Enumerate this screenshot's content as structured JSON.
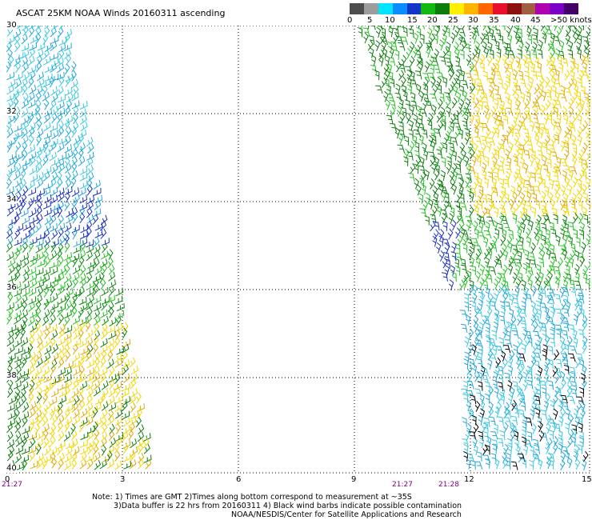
{
  "title": "ASCAT 25KM NOAA Winds 20160311 ascending",
  "scale": {
    "colors": [
      "#4d4d4d",
      "#9c9c9c",
      "#00e5ff",
      "#0a8cff",
      "#1533c7",
      "#12b812",
      "#0c7d0c",
      "#ffee00",
      "#ffb400",
      "#ff6600",
      "#e8102c",
      "#8b1010",
      "#a06040",
      "#b000b0",
      "#7a00c8",
      "#440066"
    ],
    "labels": [
      "0",
      "5",
      "10",
      "15",
      "20",
      "25",
      "30",
      "35",
      "40",
      "45",
      ">50 knots"
    ]
  },
  "lat_labels": [
    "30",
    "32",
    "34",
    "36",
    "38",
    "40"
  ],
  "lon_labels": [
    "0",
    "3",
    "6",
    "9",
    "12",
    "15"
  ],
  "times": [
    "21:27",
    "21:27",
    "21:28"
  ],
  "notes": [
    "Note: 1) Times are GMT 2)Times along bottom correspond to measurement at ~35S",
    "3)Data buffer is 22 hrs from 20160311 4) Black wind barbs indicate possible contamination",
    "NOAA/NESDIS/Center for Satellite Applications and Research"
  ]
}
